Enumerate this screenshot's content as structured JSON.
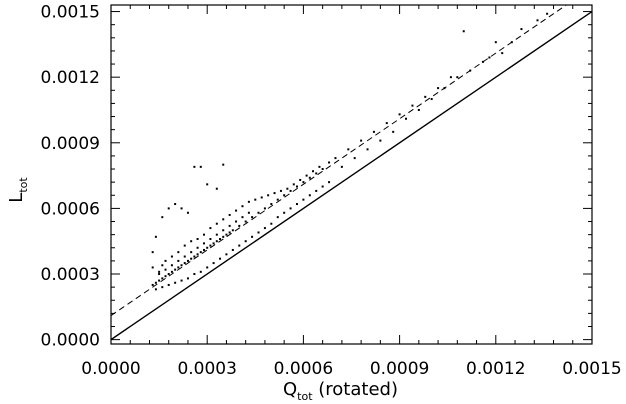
{
  "chart_data": {
    "type": "scatter",
    "title": "",
    "xlabel": {
      "main": "Q",
      "sub": "tot",
      "suffix": " (rotated)"
    },
    "ylabel": {
      "main": "L",
      "sub": "tot"
    },
    "xlim": [
      0.0,
      0.0015
    ],
    "ylim": [
      -2e-05,
      0.00153
    ],
    "xticks": [
      "0.0000",
      "0.0003",
      "0.0006",
      "0.0009",
      "0.0012",
      "0.0015"
    ],
    "xtick_values": [
      0.0,
      0.0003,
      0.0006,
      0.0009,
      0.0012,
      0.0015
    ],
    "yticks": [
      "0.0000",
      "0.0003",
      "0.0006",
      "0.0009",
      "0.0012",
      "0.0015"
    ],
    "ytick_values": [
      0.0,
      0.0003,
      0.0006,
      0.0009,
      0.0012,
      0.0015
    ],
    "grid": false,
    "series": [
      {
        "style": "points",
        "color": "#000000",
        "points": [
          [
            0.00013,
            0.00025
          ],
          [
            0.00014,
            0.00026
          ],
          [
            0.00015,
            0.00027
          ],
          [
            0.00016,
            0.00028
          ],
          [
            0.00017,
            0.00029
          ],
          [
            0.00018,
            0.0003
          ],
          [
            0.00019,
            0.00031
          ],
          [
            0.0002,
            0.00032
          ],
          [
            0.00021,
            0.00033
          ],
          [
            0.00022,
            0.00034
          ],
          [
            0.00023,
            0.00035
          ],
          [
            0.00024,
            0.00036
          ],
          [
            0.00025,
            0.00037
          ],
          [
            0.00026,
            0.00038
          ],
          [
            0.00027,
            0.00039
          ],
          [
            0.00028,
            0.0004
          ],
          [
            0.00029,
            0.00041
          ],
          [
            0.0003,
            0.00042
          ],
          [
            0.00031,
            0.00043
          ],
          [
            0.00032,
            0.00044
          ],
          [
            0.00033,
            0.00045
          ],
          [
            0.00034,
            0.00046
          ],
          [
            0.00035,
            0.00047
          ],
          [
            0.00036,
            0.00048
          ],
          [
            0.00037,
            0.00049
          ],
          [
            0.00038,
            0.0005
          ],
          [
            0.0004,
            0.00052
          ],
          [
            0.00042,
            0.00054
          ],
          [
            0.00044,
            0.00056
          ],
          [
            0.00046,
            0.00058
          ],
          [
            0.00048,
            0.0006
          ],
          [
            0.0005,
            0.00062
          ],
          [
            0.00052,
            0.00064
          ],
          [
            0.00054,
            0.00066
          ],
          [
            0.00056,
            0.00068
          ],
          [
            0.00058,
            0.0007
          ],
          [
            0.0006,
            0.00072
          ],
          [
            0.00062,
            0.00074
          ],
          [
            0.00064,
            0.00076
          ],
          [
            0.00066,
            0.00078
          ],
          [
            0.00068,
            0.00081
          ],
          [
            0.0007,
            0.00083
          ],
          [
            0.00074,
            0.00087
          ],
          [
            0.00078,
            0.00091
          ],
          [
            0.00082,
            0.00095
          ],
          [
            0.00086,
            0.00099
          ],
          [
            0.0009,
            0.00103
          ],
          [
            0.00094,
            0.00107
          ],
          [
            0.00098,
            0.00111
          ],
          [
            0.00102,
            0.00115
          ],
          [
            0.00106,
            0.0012
          ],
          [
            0.0011,
            0.00141
          ],
          [
            0.00118,
            0.00129
          ],
          [
            0.0012,
            0.00136
          ],
          [
            0.00122,
            0.00131
          ],
          [
            0.00125,
            0.00136
          ],
          [
            0.00128,
            0.00142
          ],
          [
            0.00133,
            0.00146
          ],
          [
            0.00136,
            0.00149
          ],
          [
            0.00026,
            0.00079
          ],
          [
            0.00028,
            0.00079
          ],
          [
            0.00035,
            0.0008
          ],
          [
            0.0003,
            0.00071
          ],
          [
            0.00033,
            0.00069
          ],
          [
            0.00013,
            0.0004
          ],
          [
            0.00014,
            0.00047
          ],
          [
            0.00016,
            0.00056
          ],
          [
            0.00018,
            0.0006
          ],
          [
            0.0002,
            0.00062
          ],
          [
            0.00022,
            0.0006
          ],
          [
            0.00024,
            0.00058
          ],
          [
            0.00016,
            0.00034
          ],
          [
            0.00015,
            0.00031
          ],
          [
            0.00013,
            0.00033
          ],
          [
            0.00017,
            0.00036
          ],
          [
            0.00019,
            0.00038
          ],
          [
            0.00021,
            0.0004
          ],
          [
            0.00023,
            0.00043
          ],
          [
            0.00025,
            0.00045
          ],
          [
            0.00027,
            0.00046
          ],
          [
            0.00029,
            0.00048
          ],
          [
            0.00031,
            0.00051
          ],
          [
            0.00033,
            0.00053
          ],
          [
            0.00035,
            0.00055
          ],
          [
            0.00037,
            0.00057
          ],
          [
            0.00039,
            0.00059
          ],
          [
            0.00041,
            0.00061
          ],
          [
            0.00043,
            0.00063
          ],
          [
            0.00045,
            0.00064
          ],
          [
            0.00047,
            0.00065
          ],
          [
            0.00049,
            0.00066
          ],
          [
            0.00051,
            0.00067
          ],
          [
            0.00053,
            0.00068
          ],
          [
            0.00055,
            0.00069
          ],
          [
            0.00057,
            0.00071
          ],
          [
            0.00059,
            0.00073
          ],
          [
            0.00061,
            0.00075
          ],
          [
            0.00063,
            0.00077
          ],
          [
            0.00065,
            0.00079
          ],
          [
            0.00015,
            0.0003
          ],
          [
            0.00017,
            0.00032
          ],
          [
            0.00019,
            0.00034
          ],
          [
            0.00021,
            0.00036
          ],
          [
            0.00023,
            0.00038
          ],
          [
            0.00025,
            0.0004
          ],
          [
            0.00027,
            0.00042
          ],
          [
            0.00029,
            0.00044
          ],
          [
            0.00031,
            0.00046
          ],
          [
            0.00033,
            0.00048
          ],
          [
            0.00035,
            0.0005
          ],
          [
            0.00037,
            0.00052
          ],
          [
            0.00039,
            0.00054
          ],
          [
            0.00041,
            0.00056
          ],
          [
            0.00043,
            0.00058
          ],
          [
            0.00014,
            0.00023
          ],
          [
            0.00016,
            0.00024
          ],
          [
            0.00018,
            0.00025
          ],
          [
            0.0002,
            0.00026
          ],
          [
            0.00022,
            0.00027
          ],
          [
            0.00024,
            0.00028
          ],
          [
            0.00026,
            0.0003
          ],
          [
            0.00028,
            0.00031
          ],
          [
            0.0003,
            0.00033
          ],
          [
            0.00032,
            0.00035
          ],
          [
            0.00034,
            0.00037
          ],
          [
            0.00036,
            0.00039
          ],
          [
            0.00038,
            0.00041
          ],
          [
            0.0004,
            0.00043
          ],
          [
            0.00042,
            0.00045
          ],
          [
            0.00044,
            0.00047
          ],
          [
            0.00046,
            0.00049
          ],
          [
            0.00048,
            0.00051
          ],
          [
            0.0005,
            0.00053
          ],
          [
            0.00052,
            0.00056
          ],
          [
            0.00054,
            0.00058
          ],
          [
            0.00056,
            0.0006
          ],
          [
            0.00058,
            0.00062
          ],
          [
            0.0006,
            0.00064
          ],
          [
            0.00062,
            0.00066
          ],
          [
            0.00064,
            0.00068
          ],
          [
            0.00066,
            0.0007
          ],
          [
            0.00068,
            0.00072
          ],
          [
            0.00072,
            0.00079
          ],
          [
            0.00076,
            0.00083
          ],
          [
            0.0008,
            0.00087
          ],
          [
            0.00084,
            0.00091
          ],
          [
            0.00088,
            0.00095
          ],
          [
            0.00092,
            0.00101
          ],
          [
            0.00096,
            0.00105
          ],
          [
            0.001,
            0.0011
          ],
          [
            0.00104,
            0.00115
          ],
          [
            0.00108,
            0.0012
          ],
          [
            0.00112,
            0.00123
          ],
          [
            0.00116,
            0.00127
          ]
        ]
      },
      {
        "style": "dashed-line",
        "color": "#000000",
        "slope": 1.0,
        "intercept": 0.00011
      },
      {
        "style": "solid-line",
        "color": "#000000",
        "slope": 1.0,
        "intercept": 0.0
      }
    ]
  }
}
